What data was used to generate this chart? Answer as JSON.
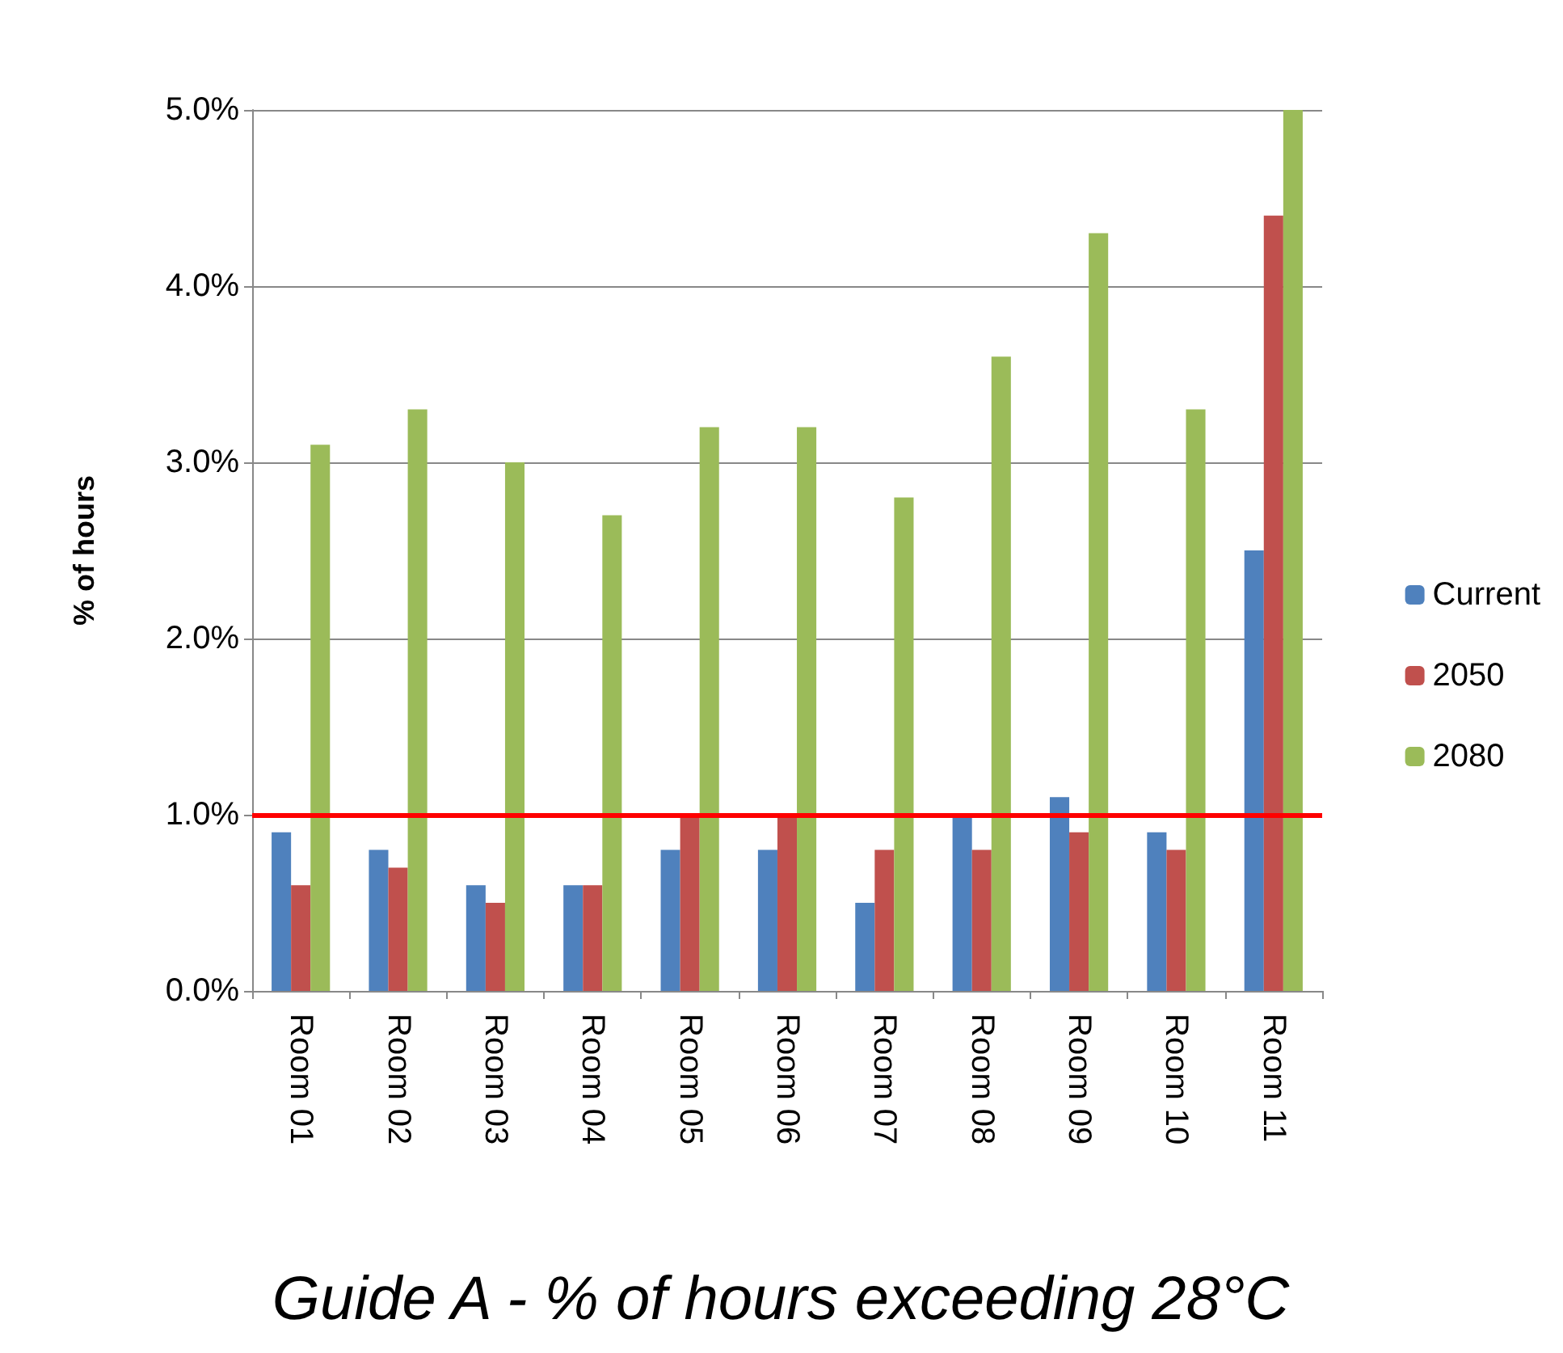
{
  "chart_data": {
    "type": "bar",
    "title": "Guide A - % of hours exceeding 28°C",
    "ylabel": "% of hours",
    "categories": [
      "Room 01",
      "Room 02",
      "Room 03",
      "Room 04",
      "Room 05",
      "Room 06",
      "Room 07",
      "Room 08",
      "Room 09",
      "Room 10",
      "Room 11"
    ],
    "series": [
      {
        "name": "Current",
        "color": "#4f81bd",
        "values": [
          0.9,
          0.8,
          0.6,
          0.6,
          0.8,
          0.8,
          0.5,
          1.0,
          1.1,
          0.9,
          2.5
        ]
      },
      {
        "name": "2050",
        "color": "#c0504d",
        "values": [
          0.6,
          0.7,
          0.5,
          0.6,
          1.0,
          1.0,
          0.8,
          0.8,
          0.9,
          0.8,
          4.4
        ]
      },
      {
        "name": "2080",
        "color": "#9bbb59",
        "values": [
          3.1,
          3.3,
          3.0,
          2.7,
          3.2,
          3.2,
          2.8,
          3.6,
          4.3,
          3.3,
          5.0
        ]
      }
    ],
    "ylim": [
      0,
      5
    ],
    "yticks": [
      {
        "value": 0,
        "label": "0.0%"
      },
      {
        "value": 1,
        "label": "1.0%"
      },
      {
        "value": 2,
        "label": "2.0%"
      },
      {
        "value": 3,
        "label": "3.0%"
      },
      {
        "value": 4,
        "label": "4.0%"
      },
      {
        "value": 5,
        "label": "5.0%"
      }
    ],
    "ref_lines": [
      {
        "axis": "y",
        "value": 1,
        "color": "#ff0000"
      }
    ],
    "grid": "y",
    "legend": "right"
  }
}
